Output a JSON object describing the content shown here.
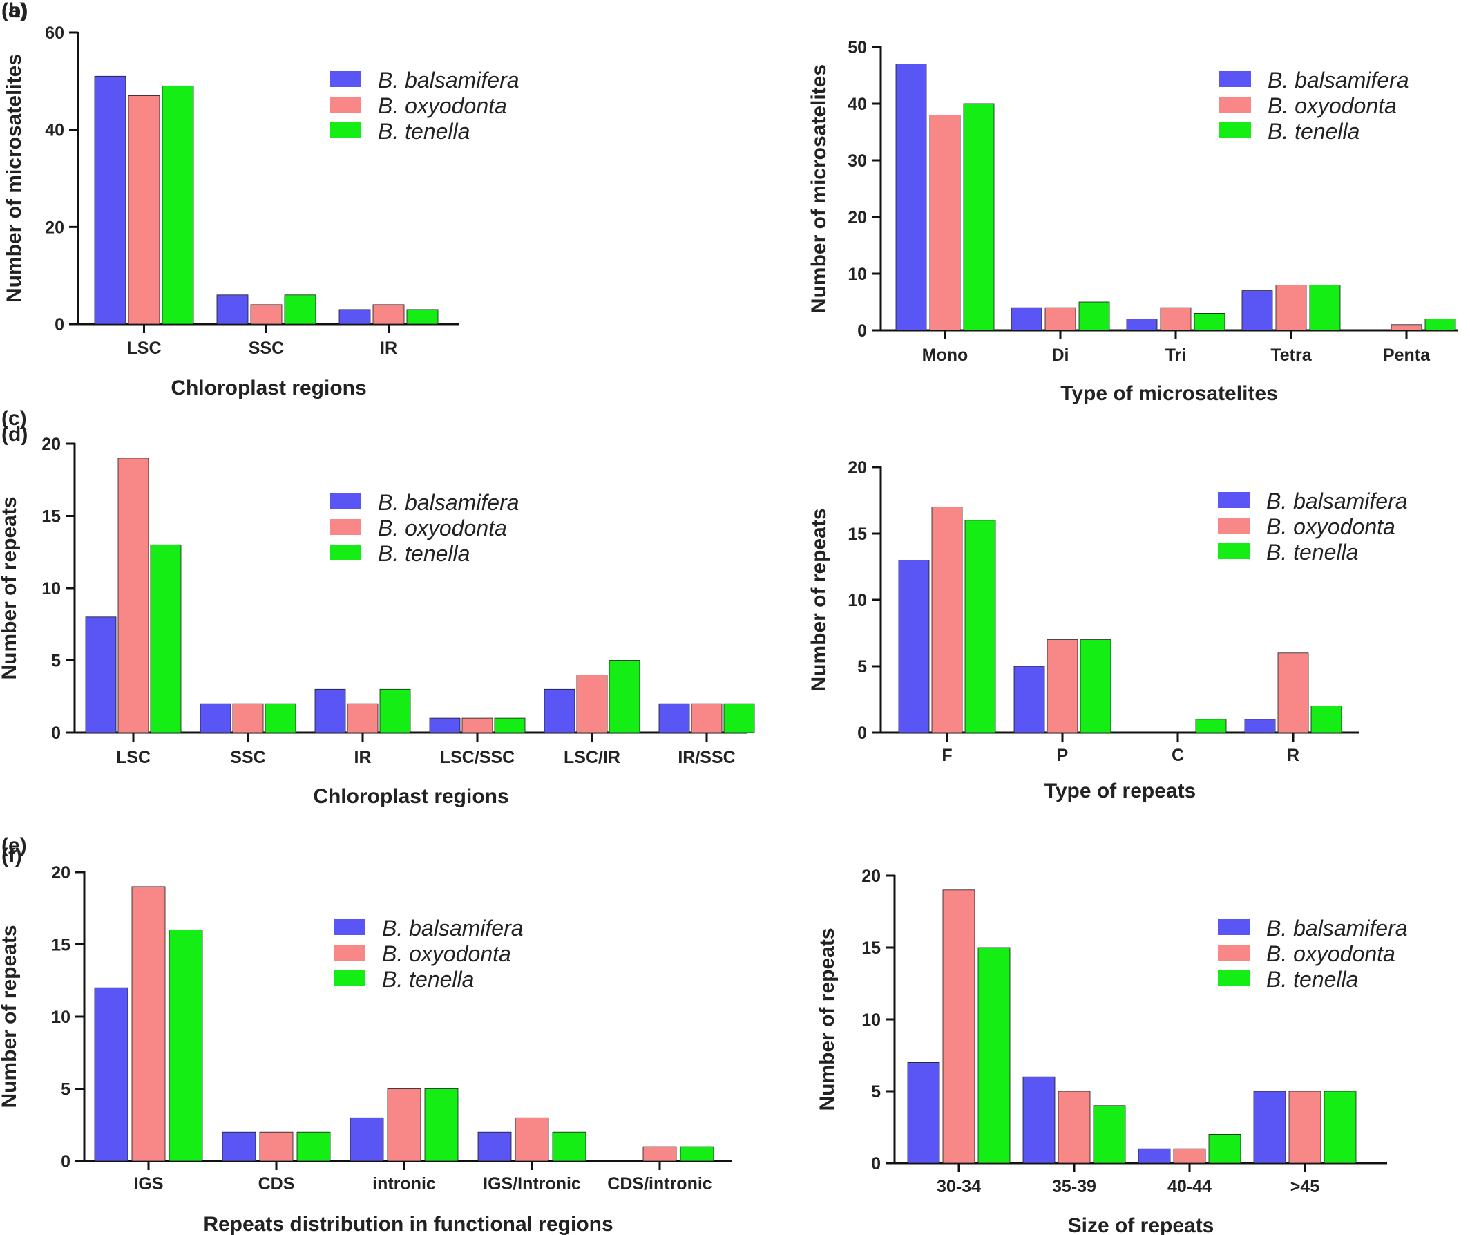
{
  "figure": {
    "colors": {
      "B. balsamifera": "#5a55f5",
      "B. oxyodonta": "#f88888",
      "B. tenella": "#15ee15"
    }
  },
  "chart_data": [
    {
      "panel": "(a)",
      "type": "bar",
      "categories": [
        "LSC",
        "SSC",
        "IR"
      ],
      "series": [
        {
          "name": "B. balsamifera",
          "values": [
            51,
            6,
            3
          ]
        },
        {
          "name": "B. oxyodonta",
          "values": [
            47,
            4,
            4
          ]
        },
        {
          "name": "B. tenella",
          "values": [
            49,
            6,
            3
          ]
        }
      ],
      "xlabel": "Chloroplast regions",
      "ylabel": "Number of microsatelites",
      "ylim": [
        0,
        60
      ],
      "yticks": [
        0,
        20,
        40,
        60
      ],
      "legend": "top-right",
      "grid": false
    },
    {
      "panel": "(b)",
      "type": "bar",
      "categories": [
        "Mono",
        "Di",
        "Tri",
        "Tetra",
        "Penta"
      ],
      "series": [
        {
          "name": "B. balsamifera",
          "values": [
            47,
            4,
            2,
            7,
            0
          ]
        },
        {
          "name": "B. oxyodonta",
          "values": [
            38,
            4,
            4,
            8,
            1
          ]
        },
        {
          "name": "B. tenella",
          "values": [
            40,
            5,
            3,
            8,
            2
          ]
        }
      ],
      "xlabel": "Type of microsatelites",
      "ylabel": "Number of microsatelites",
      "ylim": [
        0,
        50
      ],
      "yticks": [
        0,
        10,
        20,
        30,
        40,
        50
      ],
      "legend": "top-right",
      "grid": false
    },
    {
      "panel": "(c)",
      "type": "bar",
      "categories": [
        "LSC",
        "SSC",
        "IR",
        "LSC/SSC",
        "LSC/IR",
        "IR/SSC"
      ],
      "series": [
        {
          "name": "B. balsamifera",
          "values": [
            8,
            2,
            3,
            1,
            3,
            2
          ]
        },
        {
          "name": "B. oxyodonta",
          "values": [
            19,
            2,
            2,
            1,
            4,
            2
          ]
        },
        {
          "name": "B. tenella",
          "values": [
            13,
            2,
            3,
            1,
            5,
            2
          ]
        }
      ],
      "xlabel": "Chloroplast regions",
      "ylabel": "Number of repeats",
      "ylim": [
        0,
        20
      ],
      "yticks": [
        0,
        5,
        10,
        15,
        20
      ],
      "legend": "top-right",
      "grid": false
    },
    {
      "panel": "(d)",
      "type": "bar",
      "categories": [
        "F",
        "P",
        "C",
        "R"
      ],
      "series": [
        {
          "name": "B. balsamifera",
          "values": [
            13,
            5,
            0,
            1
          ]
        },
        {
          "name": "B. oxyodonta",
          "values": [
            17,
            7,
            0,
            6
          ]
        },
        {
          "name": "B. tenella",
          "values": [
            16,
            7,
            1,
            2
          ]
        }
      ],
      "xlabel": "Type of repeats",
      "ylabel": "Number of repeats",
      "ylim": [
        0,
        20
      ],
      "yticks": [
        0,
        5,
        10,
        15,
        20
      ],
      "legend": "top-right",
      "grid": false
    },
    {
      "panel": "(e)",
      "type": "bar",
      "categories": [
        "IGS",
        "CDS",
        "intronic",
        "IGS/Intronic",
        "CDS/intronic"
      ],
      "series": [
        {
          "name": "B. balsamifera",
          "values": [
            12,
            2,
            3,
            2,
            0
          ]
        },
        {
          "name": "B. oxyodonta",
          "values": [
            19,
            2,
            5,
            3,
            1
          ]
        },
        {
          "name": "B. tenella",
          "values": [
            16,
            2,
            5,
            2,
            1
          ]
        }
      ],
      "xlabel": "Repeats distribution in functional regions",
      "ylabel": "Number of repeats",
      "ylim": [
        0,
        20
      ],
      "yticks": [
        0,
        5,
        10,
        15,
        20
      ],
      "legend": "top-right",
      "grid": false
    },
    {
      "panel": "(f)",
      "type": "bar",
      "categories": [
        "30-34",
        "35-39",
        "40-44",
        ">45"
      ],
      "series": [
        {
          "name": "B. balsamifera",
          "values": [
            7,
            6,
            1,
            5
          ]
        },
        {
          "name": "B. oxyodonta",
          "values": [
            19,
            5,
            1,
            5
          ]
        },
        {
          "name": "B. tenella",
          "values": [
            15,
            4,
            2,
            5
          ]
        }
      ],
      "xlabel": "Size of repeats",
      "ylabel": "Number of repeats",
      "ylim": [
        0,
        20
      ],
      "yticks": [
        0,
        5,
        10,
        15,
        20
      ],
      "legend": "top-right",
      "grid": false
    }
  ]
}
